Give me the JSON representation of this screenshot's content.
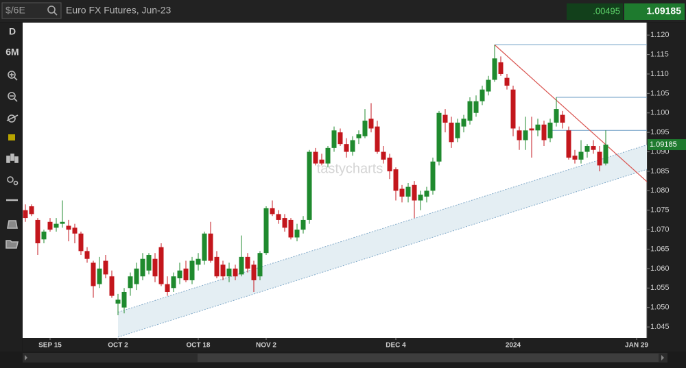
{
  "header": {
    "symbol": "$/6E",
    "name": "Euro FX Futures, Jun-23",
    "change": ".00495"
  },
  "toolbar": {
    "interval": "D",
    "range": "6M"
  },
  "chart_data": {
    "type": "candlestick",
    "watermark": "tastycharts",
    "up_color": "#1f8a2e",
    "down_color": "#c3161c",
    "categories": [
      null,
      null,
      null,
      null,
      "SEP 15",
      null,
      null,
      null,
      null,
      null,
      null,
      null,
      null,
      null,
      null,
      "OCT 2",
      null,
      null,
      null,
      null,
      null,
      null,
      null,
      null,
      null,
      null,
      null,
      null,
      "OCT 18",
      null,
      null,
      null,
      null,
      null,
      null,
      null,
      null,
      null,
      null,
      "NOV 2",
      null,
      null,
      null,
      null,
      null,
      null,
      null,
      null,
      null,
      null,
      null,
      null,
      null,
      null,
      null,
      null,
      null,
      null,
      null,
      null,
      "DEC 4",
      null,
      null,
      null,
      null,
      null,
      null,
      null,
      null,
      null,
      null,
      null,
      null,
      null,
      null,
      null,
      null,
      null,
      null,
      "2024",
      null,
      null,
      null,
      null,
      null,
      null,
      null,
      null,
      null,
      null,
      null,
      null,
      null,
      null,
      null,
      null,
      null,
      null,
      null,
      "JAN 29"
    ],
    "open": [
      1.075,
      1.076,
      1.0725,
      1.0675,
      1.072,
      1.0705,
      1.0715,
      1.071,
      1.0705,
      1.069,
      1.0645,
      1.0615,
      1.056,
      1.062,
      1.058,
      1.051,
      1.05,
      1.055,
      1.056,
      1.058,
      1.0595,
      1.0625,
      1.0655,
      1.056,
      1.055,
      1.0575,
      1.06,
      1.057,
      1.061,
      1.062,
      1.069,
      1.063,
      1.061,
      1.058,
      1.06,
      1.0585,
      1.063,
      1.061,
      1.058,
      1.064,
      1.0755,
      1.074,
      1.073,
      1.0725,
      1.068,
      1.07,
      1.0725,
      1.09,
      1.088,
      1.087,
      1.091,
      1.095,
      1.092,
      1.09,
      1.0935,
      1.094,
      1.0985,
      1.0965,
      1.09,
      1.0885,
      1.0855,
      1.0805,
      1.0785,
      1.0815,
      1.0775,
      1.0785,
      1.08,
      1.0875,
      1.0995,
      1.0975,
      1.0935,
      1.0965,
      1.098,
      1.1,
      1.103,
      1.1055,
      1.1085,
      1.113,
      1.109,
      1.106,
      1.0955,
      1.093,
      1.096,
      1.0955,
      1.097,
      1.0935,
      1.0975,
      1.0995,
      1.0955,
      1.089,
      1.088,
      1.09,
      1.0915,
      1.09,
      1.087,
      null,
      null,
      null,
      null,
      null
    ],
    "high": [
      1.0765,
      1.0765,
      1.073,
      1.07,
      1.073,
      1.073,
      1.0775,
      1.0725,
      1.0715,
      1.0695,
      1.0655,
      1.062,
      1.063,
      1.0635,
      1.0595,
      1.0535,
      1.055,
      1.059,
      1.0615,
      1.064,
      1.064,
      1.064,
      1.0665,
      1.058,
      1.059,
      1.0615,
      1.062,
      1.063,
      1.064,
      1.0695,
      1.072,
      1.0645,
      1.062,
      1.0615,
      1.061,
      1.0685,
      1.064,
      1.062,
      1.0645,
      1.076,
      1.0775,
      1.075,
      1.074,
      1.073,
      1.0715,
      1.0735,
      1.0905,
      1.091,
      1.0895,
      1.0915,
      1.0965,
      1.096,
      1.0935,
      1.094,
      1.0955,
      1.101,
      1.1025,
      1.098,
      1.0915,
      1.0895,
      1.086,
      1.0815,
      1.082,
      1.0825,
      1.08,
      1.081,
      1.0885,
      1.1005,
      1.101,
      1.099,
      1.0985,
      1.0995,
      1.104,
      1.1045,
      1.107,
      1.1095,
      1.1175,
      1.1145,
      1.11,
      1.107,
      1.0965,
      1.099,
      1.099,
      1.0985,
      1.098,
      1.0985,
      1.104,
      1.1005,
      1.0965,
      1.0905,
      1.093,
      1.092,
      1.093,
      1.0915,
      1.0955,
      null,
      null,
      null,
      null,
      null
    ],
    "low": [
      1.072,
      1.0735,
      1.0635,
      1.0665,
      1.0695,
      1.0695,
      1.0705,
      1.067,
      1.0665,
      1.0635,
      1.0615,
      1.0525,
      1.055,
      1.0575,
      1.0525,
      1.048,
      1.0485,
      1.053,
      1.0545,
      1.057,
      1.0585,
      1.0565,
      1.0555,
      1.053,
      1.054,
      1.056,
      1.0565,
      1.056,
      1.0595,
      1.061,
      1.0615,
      1.0575,
      1.057,
      1.0565,
      1.057,
      1.058,
      1.059,
      1.054,
      1.057,
      1.0635,
      1.0735,
      1.0715,
      1.0695,
      1.0675,
      1.067,
      1.069,
      1.0715,
      1.0865,
      1.0865,
      1.086,
      1.09,
      1.0915,
      1.0885,
      1.089,
      1.092,
      1.0935,
      1.095,
      1.0895,
      1.087,
      1.083,
      1.0775,
      1.077,
      1.077,
      1.073,
      1.075,
      1.077,
      1.079,
      1.0865,
      1.095,
      1.091,
      1.0925,
      1.095,
      1.097,
      1.099,
      1.102,
      1.1045,
      1.108,
      1.1095,
      1.106,
      1.094,
      1.0905,
      1.0905,
      1.0885,
      1.094,
      1.0915,
      1.0925,
      1.0965,
      1.096,
      1.088,
      1.087,
      1.087,
      1.0885,
      1.0895,
      1.085,
      1.0865,
      null,
      null,
      null,
      null,
      null
    ],
    "close": [
      1.073,
      1.074,
      1.0665,
      1.0695,
      1.07,
      1.0715,
      1.072,
      1.07,
      1.069,
      1.0645,
      1.0625,
      1.0555,
      1.06,
      1.0585,
      1.053,
      1.052,
      1.054,
      1.058,
      1.06,
      1.0625,
      1.0635,
      1.058,
      1.056,
      1.054,
      1.058,
      1.0595,
      1.057,
      1.062,
      1.0625,
      1.069,
      1.062,
      1.058,
      1.058,
      1.06,
      1.058,
      1.063,
      1.06,
      1.057,
      1.064,
      1.0755,
      1.074,
      1.0725,
      1.0705,
      1.068,
      1.07,
      1.0725,
      1.09,
      1.087,
      1.087,
      1.091,
      1.0955,
      1.092,
      1.09,
      1.093,
      1.0945,
      1.098,
      1.096,
      1.09,
      1.088,
      1.085,
      1.08,
      1.0785,
      1.081,
      1.0775,
      1.079,
      1.08,
      1.0875,
      1.1,
      1.0975,
      1.0925,
      1.0975,
      1.0985,
      1.103,
      1.103,
      1.106,
      1.1085,
      1.114,
      1.11,
      1.107,
      1.096,
      1.093,
      1.0955,
      1.0955,
      1.097,
      1.093,
      1.0975,
      1.101,
      1.0975,
      1.0885,
      1.088,
      1.09,
      1.0915,
      1.0905,
      1.0865,
      1.09185,
      null,
      null,
      null,
      null,
      null
    ],
    "ylim": [
      1.0422,
      1.1232
    ],
    "yticks": [
      1.045,
      {
        "value": 1.05,
        "label": "1.050"
      },
      1.055,
      {
        "value": 1.06,
        "label": "1.060"
      },
      1.065,
      {
        "value": 1.07,
        "label": "1.070"
      },
      1.075,
      {
        "value": 1.08,
        "label": "1.080"
      },
      1.085,
      {
        "value": 1.09,
        "label": "1.090"
      },
      1.095,
      {
        "value": 1.1,
        "label": "1.100"
      },
      1.105,
      {
        "value": 1.11,
        "label": "1.110"
      },
      1.115,
      {
        "value": 1.12,
        "label": "1.120"
      }
    ],
    "trend_line": {
      "color": "#d9534f",
      "x": [
        76,
        100.7
      ],
      "y": [
        1.1175,
        1.0823
      ]
    },
    "levels": {
      "color": "#6a9bc3",
      "x": [
        76,
        86,
        85
      ],
      "values": [
        1.1175,
        1.104,
        1.0955
      ]
    },
    "channel": {
      "color": "#7fa8c8",
      "fill": "#e4eef3",
      "x": [
        15,
        100.7
      ],
      "lower": [
        1.0424,
        1.0855
      ],
      "upper": [
        1.0488,
        1.0918
      ]
    }
  }
}
